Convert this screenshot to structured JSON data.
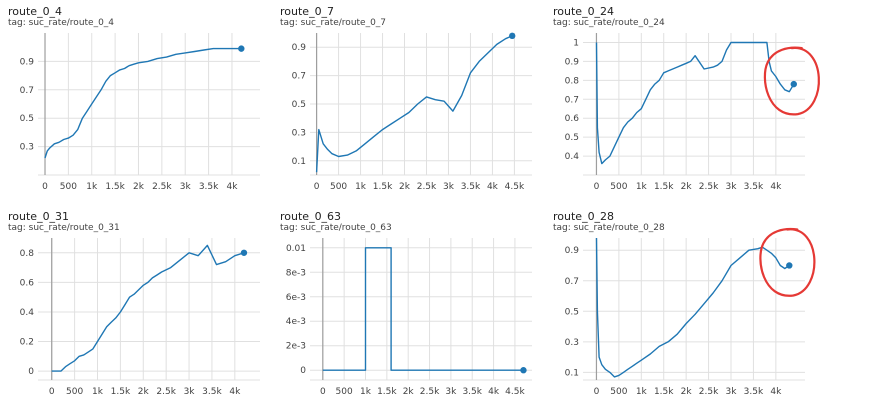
{
  "colors": {
    "line": "#1f77b4",
    "grid": "#e0e0e0",
    "axis": "#9e9e9e",
    "annotation": "#e53935",
    "text": "#424242"
  },
  "panels": [
    {
      "title": "route_0_4",
      "tag": "tag: suc_rate/route_0_4"
    },
    {
      "title": "route_0_7",
      "tag": "tag: suc_rate/route_0_7"
    },
    {
      "title": "route_0_24",
      "tag": "tag: suc_rate/route_0_24"
    },
    {
      "title": "route_0_31",
      "tag": "tag: suc_rate/route_0_31"
    },
    {
      "title": "route_0_63",
      "tag": "tag: suc_rate/route_0_63"
    },
    {
      "title": "route_0_28",
      "tag": "tag: suc_rate/route_0_28"
    }
  ],
  "chart_data": [
    {
      "type": "line",
      "title": "route_0_4",
      "xlim": [
        -150,
        4600
      ],
      "ylim": [
        0.1,
        1.1
      ],
      "xticks": [
        0,
        500,
        1000,
        1500,
        2000,
        2500,
        3000,
        3500,
        4000
      ],
      "xtick_labels": [
        "0",
        "500",
        "1k",
        "1.5k",
        "2k",
        "2.5k",
        "3k",
        "3.5k",
        "4k"
      ],
      "yticks": [
        0.3,
        0.5,
        0.7,
        0.9
      ],
      "ytick_labels": [
        "0.3",
        "0.5",
        "0.7",
        "0.9"
      ],
      "x_axis_at": 0,
      "series": [
        {
          "x": [
            0,
            50,
            100,
            200,
            300,
            400,
            500,
            600,
            700,
            800,
            900,
            1000,
            1100,
            1200,
            1300,
            1400,
            1500,
            1600,
            1700,
            1800,
            1900,
            2000,
            2200,
            2400,
            2600,
            2800,
            3000,
            3200,
            3400,
            3600,
            3800,
            4000,
            4200
          ],
          "y": [
            0.22,
            0.27,
            0.29,
            0.32,
            0.33,
            0.35,
            0.36,
            0.38,
            0.42,
            0.5,
            0.55,
            0.6,
            0.65,
            0.7,
            0.76,
            0.8,
            0.82,
            0.84,
            0.85,
            0.87,
            0.88,
            0.89,
            0.9,
            0.92,
            0.93,
            0.95,
            0.96,
            0.97,
            0.98,
            0.99,
            0.99,
            0.99,
            0.99
          ]
        }
      ]
    },
    {
      "type": "line",
      "title": "route_0_7",
      "xlim": [
        -150,
        4900
      ],
      "ylim": [
        0.0,
        1.0
      ],
      "xticks": [
        0,
        500,
        1000,
        1500,
        2000,
        2500,
        3000,
        3500,
        4000,
        4500
      ],
      "xtick_labels": [
        "0",
        "500",
        "1k",
        "1.5k",
        "2k",
        "2.5k",
        "3k",
        "3.5k",
        "4k",
        "4.5k"
      ],
      "yticks": [
        0.1,
        0.3,
        0.5,
        0.7,
        0.9
      ],
      "ytick_labels": [
        "0.1",
        "0.3",
        "0.5",
        "0.7",
        "0.9"
      ],
      "x_axis_at": 0,
      "series": [
        {
          "x": [
            0,
            50,
            150,
            250,
            350,
            500,
            700,
            900,
            1100,
            1300,
            1500,
            1700,
            1900,
            2100,
            2300,
            2500,
            2700,
            2900,
            3100,
            3300,
            3500,
            3700,
            3900,
            4100,
            4300,
            4450
          ],
          "y": [
            0.02,
            0.32,
            0.22,
            0.18,
            0.15,
            0.13,
            0.14,
            0.17,
            0.22,
            0.27,
            0.32,
            0.36,
            0.4,
            0.44,
            0.5,
            0.55,
            0.53,
            0.52,
            0.45,
            0.56,
            0.72,
            0.8,
            0.86,
            0.92,
            0.96,
            0.98
          ]
        }
      ]
    },
    {
      "type": "line",
      "title": "route_0_24",
      "xlim": [
        -300,
        4650
      ],
      "ylim": [
        0.3,
        1.05
      ],
      "xticks": [
        0,
        500,
        1000,
        1500,
        2000,
        2500,
        3000,
        3500,
        4000
      ],
      "xtick_labels": [
        "0",
        "500",
        "1k",
        "1.5k",
        "2k",
        "2.5k",
        "3k",
        "3.5k",
        "4k"
      ],
      "yticks": [
        0.4,
        0.5,
        0.6,
        0.7,
        0.8,
        0.9,
        1
      ],
      "ytick_labels": [
        "0.4",
        "0.5",
        "0.6",
        "0.7",
        "0.8",
        "0.9",
        "1"
      ],
      "x_axis_at": 0,
      "annotation": "circle-around-end",
      "series": [
        {
          "x": [
            0,
            20,
            60,
            120,
            200,
            300,
            400,
            500,
            600,
            700,
            800,
            900,
            1000,
            1100,
            1200,
            1300,
            1400,
            1500,
            1600,
            1700,
            1800,
            1900,
            2000,
            2100,
            2200,
            2400,
            2600,
            2700,
            2800,
            2900,
            3000,
            3200,
            3400,
            3500,
            3700,
            3800,
            3850,
            3900,
            4000,
            4100,
            4200,
            4300,
            4400
          ],
          "y": [
            1.0,
            0.55,
            0.42,
            0.36,
            0.38,
            0.4,
            0.45,
            0.5,
            0.55,
            0.58,
            0.6,
            0.63,
            0.65,
            0.7,
            0.75,
            0.78,
            0.8,
            0.84,
            0.85,
            0.86,
            0.87,
            0.88,
            0.89,
            0.9,
            0.93,
            0.86,
            0.87,
            0.88,
            0.9,
            0.96,
            1.0,
            1.0,
            1.0,
            1.0,
            1.0,
            1.0,
            0.9,
            0.85,
            0.82,
            0.78,
            0.75,
            0.74,
            0.78
          ]
        }
      ]
    },
    {
      "type": "line",
      "title": "route_0_31",
      "xlim": [
        -300,
        4550
      ],
      "ylim": [
        -0.06,
        0.9
      ],
      "xticks": [
        0,
        500,
        1000,
        1500,
        2000,
        2500,
        3000,
        3500,
        4000
      ],
      "xtick_labels": [
        "0",
        "500",
        "1k",
        "1.5k",
        "2k",
        "2.5k",
        "3k",
        "3.5k",
        "4k"
      ],
      "yticks": [
        0,
        0.2,
        0.4,
        0.6,
        0.8
      ],
      "ytick_labels": [
        "0",
        "0.2",
        "0.4",
        "0.6",
        "0.8"
      ],
      "x_axis_at": 0,
      "series": [
        {
          "x": [
            0,
            200,
            300,
            400,
            500,
            600,
            700,
            800,
            900,
            1000,
            1100,
            1200,
            1300,
            1400,
            1500,
            1600,
            1700,
            1800,
            1900,
            2000,
            2100,
            2200,
            2300,
            2400,
            2600,
            2800,
            3000,
            3200,
            3400,
            3600,
            3800,
            4000,
            4200
          ],
          "y": [
            0,
            0,
            0.03,
            0.05,
            0.07,
            0.1,
            0.11,
            0.13,
            0.15,
            0.2,
            0.25,
            0.3,
            0.33,
            0.36,
            0.4,
            0.45,
            0.5,
            0.52,
            0.55,
            0.58,
            0.6,
            0.63,
            0.65,
            0.67,
            0.7,
            0.75,
            0.8,
            0.78,
            0.85,
            0.72,
            0.74,
            0.78,
            0.8
          ]
        }
      ]
    },
    {
      "type": "line",
      "title": "route_0_63",
      "xlim": [
        -300,
        4900
      ],
      "ylim": [
        -0.0008,
        0.0108
      ],
      "xticks": [
        0,
        500,
        1000,
        1500,
        2000,
        2500,
        3000,
        3500,
        4000,
        4500
      ],
      "xtick_labels": [
        "0",
        "500",
        "1k",
        "1.5k",
        "2k",
        "2.5k",
        "3k",
        "3.5k",
        "4k",
        "4.5k"
      ],
      "yticks": [
        0,
        0.002,
        0.004,
        0.006,
        0.008,
        0.01
      ],
      "ytick_labels": [
        "0",
        "2e-3",
        "4e-3",
        "6e-3",
        "8e-3",
        "0.01"
      ],
      "x_axis_at": 0,
      "series": [
        {
          "x": [
            0,
            1000,
            1000,
            1600,
            1600,
            4700
          ],
          "y": [
            0,
            0,
            0.01,
            0.01,
            0,
            0
          ]
        }
      ]
    },
    {
      "type": "line",
      "title": "route_0_28",
      "xlim": [
        -300,
        4650
      ],
      "ylim": [
        0.05,
        0.98
      ],
      "xticks": [
        0,
        500,
        1000,
        1500,
        2000,
        2500,
        3000,
        3500,
        4000
      ],
      "xtick_labels": [
        "0",
        "500",
        "1k",
        "1.5k",
        "2k",
        "2.5k",
        "3k",
        "3.5k",
        "4k"
      ],
      "yticks": [
        0.1,
        0.3,
        0.5,
        0.7,
        0.9
      ],
      "ytick_labels": [
        "0.1",
        "0.3",
        "0.5",
        "0.7",
        "0.9"
      ],
      "x_axis_at": 0,
      "annotation": "circle-around-end",
      "series": [
        {
          "x": [
            0,
            20,
            60,
            120,
            200,
            300,
            400,
            500,
            600,
            700,
            800,
            900,
            1000,
            1200,
            1400,
            1600,
            1800,
            2000,
            2200,
            2400,
            2600,
            2800,
            3000,
            3200,
            3400,
            3600,
            3700,
            3800,
            3900,
            4000,
            4100,
            4200,
            4300
          ],
          "y": [
            0.98,
            0.5,
            0.2,
            0.15,
            0.12,
            0.1,
            0.07,
            0.08,
            0.1,
            0.12,
            0.14,
            0.16,
            0.18,
            0.22,
            0.27,
            0.3,
            0.35,
            0.42,
            0.48,
            0.55,
            0.62,
            0.7,
            0.8,
            0.85,
            0.9,
            0.91,
            0.92,
            0.9,
            0.88,
            0.85,
            0.8,
            0.78,
            0.8
          ]
        }
      ]
    }
  ]
}
